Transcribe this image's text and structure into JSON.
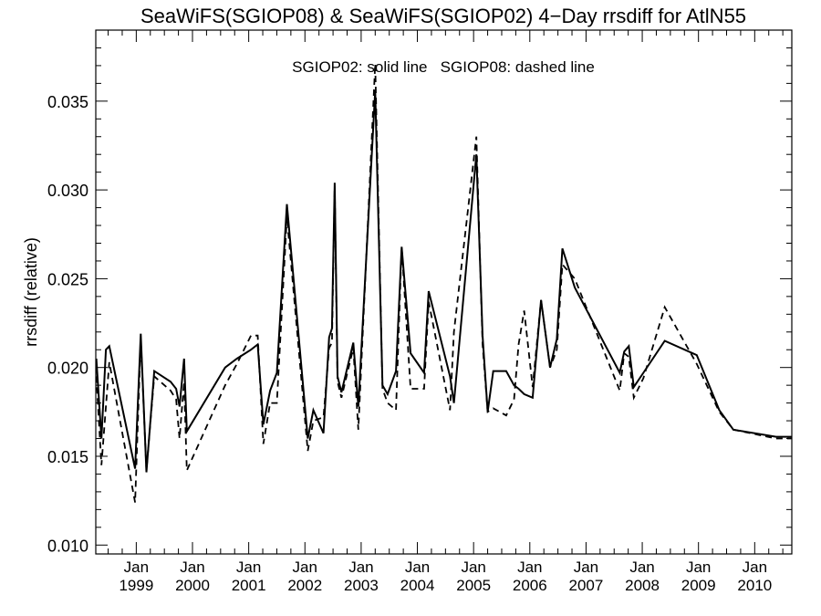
{
  "chart_data": {
    "type": "line",
    "title": "SeaWiFS(SGIOP08) & SeaWiFS(SGIOP02) 4−Day rrsdiff for AtlN55",
    "annotation": "SGIOP02: solid line   SGIOP08: dashed line",
    "xlabel": "",
    "ylabel": "rrsdiff (relative)",
    "ylim": [
      0.0095,
      0.039
    ],
    "xlim": [
      1998.28,
      2010.66
    ],
    "y_ticks": [
      "0.010",
      "0.015",
      "0.020",
      "0.025",
      "0.030",
      "0.035"
    ],
    "x_ticks": [
      {
        "month": "Jan",
        "year": "1999"
      },
      {
        "month": "Jan",
        "year": "2000"
      },
      {
        "month": "Jan",
        "year": "2001"
      },
      {
        "month": "Jan",
        "year": "2002"
      },
      {
        "month": "Jan",
        "year": "2003"
      },
      {
        "month": "Jan",
        "year": "2004"
      },
      {
        "month": "Jan",
        "year": "2005"
      },
      {
        "month": "Jan",
        "year": "2006"
      },
      {
        "month": "Jan",
        "year": "2007"
      },
      {
        "month": "Jan",
        "year": "2008"
      },
      {
        "month": "Jan",
        "year": "2009"
      },
      {
        "month": "Jan",
        "year": "2010"
      }
    ],
    "grid": false,
    "series": [
      {
        "name": "SGIOP02",
        "style": "solid",
        "color": "#000000",
        "x": [
          1998.29,
          1998.38,
          1998.46,
          1998.52,
          1998.98,
          1999.08,
          1999.18,
          1999.32,
          1999.61,
          1999.71,
          1999.77,
          1999.85,
          1999.9,
          2000.58,
          2000.79,
          2001.04,
          2001.16,
          2001.26,
          2001.38,
          2001.5,
          2001.68,
          2002.05,
          2002.15,
          2002.33,
          2002.43,
          2002.48,
          2002.53,
          2002.58,
          2002.65,
          2002.86,
          2002.95,
          2003.25,
          2003.38,
          2003.47,
          2003.62,
          2003.72,
          2003.88,
          2004.12,
          2004.2,
          2004.58,
          2004.65,
          2005.05,
          2005.16,
          2005.25,
          2005.35,
          2005.58,
          2005.72,
          2005.8,
          2005.9,
          2006.05,
          2006.2,
          2006.36,
          2006.48,
          2006.58,
          2006.8,
          2007.6,
          2007.68,
          2007.76,
          2007.85,
          2008.02,
          2008.4,
          2008.97,
          2009.37,
          2009.62,
          2010.38,
          2010.48,
          2010.52,
          2010.57,
          2010.66
        ],
        "y": [
          0.0205,
          0.016,
          0.021,
          0.0212,
          0.0143,
          0.0219,
          0.0141,
          0.0198,
          0.0192,
          0.0188,
          0.0178,
          0.0205,
          0.0164,
          0.02,
          0.0205,
          0.021,
          0.0213,
          0.0168,
          0.0187,
          0.0197,
          0.0292,
          0.016,
          0.0176,
          0.0163,
          0.0217,
          0.0222,
          0.0304,
          0.0195,
          0.0186,
          0.0214,
          0.0178,
          0.0356,
          0.019,
          0.0185,
          0.0198,
          0.0268,
          0.0208,
          0.0197,
          0.0243,
          0.0195,
          0.018,
          0.032,
          0.0218,
          0.0175,
          0.0198,
          0.0198,
          0.019,
          0.0188,
          0.0185,
          0.0183,
          0.0238,
          0.02,
          0.0216,
          0.0267,
          0.0245,
          0.0197,
          0.0209,
          0.0212,
          0.0189,
          0.0197,
          0.0215,
          0.0207,
          0.0176,
          0.0165,
          0.0161,
          0.0161,
          0.0161,
          0.0161,
          0.0161
        ]
      },
      {
        "name": "SGIOP08",
        "style": "dashed",
        "color": "#000000",
        "x": [
          1998.29,
          1998.38,
          1998.52,
          1998.98,
          1999.08,
          1999.18,
          1999.32,
          1999.61,
          1999.71,
          1999.77,
          1999.85,
          1999.9,
          2000.58,
          2000.79,
          2001.04,
          2001.16,
          2001.26,
          2001.38,
          2001.5,
          2001.68,
          2002.05,
          2002.15,
          2002.33,
          2002.43,
          2002.48,
          2002.53,
          2002.58,
          2002.65,
          2002.86,
          2002.95,
          2003.25,
          2003.38,
          2003.47,
          2003.62,
          2003.72,
          2003.88,
          2004.12,
          2004.2,
          2004.58,
          2004.65,
          2005.05,
          2005.16,
          2005.25,
          2005.35,
          2005.58,
          2005.72,
          2005.8,
          2005.9,
          2006.05,
          2006.2,
          2006.36,
          2006.48,
          2006.58,
          2006.8,
          2007.6,
          2007.68,
          2007.76,
          2007.85,
          2008.02,
          2008.4,
          2008.97,
          2009.37,
          2009.62,
          2010.38,
          2010.48,
          2010.57,
          2010.66
        ],
        "y": [
          0.0195,
          0.0145,
          0.0203,
          0.0124,
          0.0216,
          0.0142,
          0.0195,
          0.0187,
          0.0182,
          0.016,
          0.0192,
          0.0142,
          0.019,
          0.0202,
          0.0218,
          0.0218,
          0.0157,
          0.018,
          0.018,
          0.0285,
          0.0153,
          0.017,
          0.0172,
          0.0211,
          0.0214,
          0.0302,
          0.0192,
          0.0183,
          0.0211,
          0.0165,
          0.0371,
          0.0188,
          0.018,
          0.0176,
          0.0268,
          0.0188,
          0.0188,
          0.0237,
          0.0176,
          0.022,
          0.033,
          0.0213,
          0.0175,
          0.0177,
          0.0173,
          0.0182,
          0.0213,
          0.0232,
          0.0189,
          0.0238,
          0.02,
          0.021,
          0.0258,
          0.025,
          0.0187,
          0.0208,
          0.0206,
          0.0183,
          0.0194,
          0.0234,
          0.0202,
          0.0175,
          0.0165,
          0.016,
          0.016,
          0.016,
          0.016
        ]
      }
    ]
  }
}
